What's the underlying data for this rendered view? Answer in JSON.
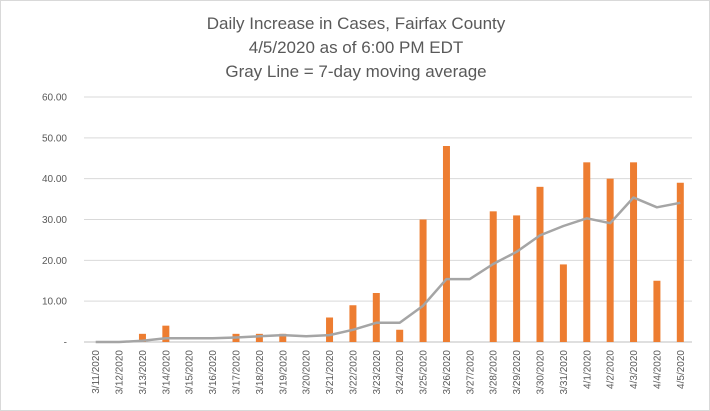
{
  "chart_data": {
    "type": "bar",
    "title_lines": [
      "Daily Increase in Cases, Fairfax County",
      "4/5/2020 as of 6:00 PM EDT",
      "Gray Line = 7-day moving average"
    ],
    "xlabel": "",
    "ylabel": "",
    "ylim": [
      0,
      60
    ],
    "yticks": [
      0,
      10,
      20,
      30,
      40,
      50,
      60
    ],
    "ytick_labels": [
      "-",
      "10.00",
      "20.00",
      "30.00",
      "40.00",
      "50.00",
      "60.00"
    ],
    "categories": [
      "3/11/2020",
      "3/12/2020",
      "3/13/2020",
      "3/14/2020",
      "3/15/2020",
      "3/16/2020",
      "3/17/2020",
      "3/18/2020",
      "3/19/2020",
      "3/20/2020",
      "3/21/2020",
      "3/22/2020",
      "3/23/2020",
      "3/24/2020",
      "3/25/2020",
      "3/26/2020",
      "3/27/2020",
      "3/28/2020",
      "3/29/2020",
      "3/30/2020",
      "3/31/2020",
      "4/1/2020",
      "4/2/2020",
      "4/3/2020",
      "4/4/2020",
      "4/5/2020"
    ],
    "series": [
      {
        "kind": "bar",
        "color": "#ed7d31",
        "values": [
          0,
          0,
          2,
          4,
          0,
          0,
          2,
          2,
          2,
          0,
          6,
          9,
          12,
          3,
          30,
          48,
          0,
          32,
          31,
          38,
          19,
          44,
          40,
          44,
          15,
          39
        ]
      },
      {
        "kind": "line",
        "color": "#a5a5a5",
        "values": [
          0,
          0,
          0.3,
          0.9,
          0.9,
          0.9,
          1.1,
          1.4,
          1.7,
          1.4,
          1.7,
          3.0,
          4.7,
          4.7,
          8.9,
          15.4,
          15.4,
          19.1,
          22.1,
          26.1,
          28.4,
          30.3,
          29.1,
          35.4,
          33.0,
          34.1
        ]
      }
    ],
    "grid": true,
    "legend": "none"
  }
}
